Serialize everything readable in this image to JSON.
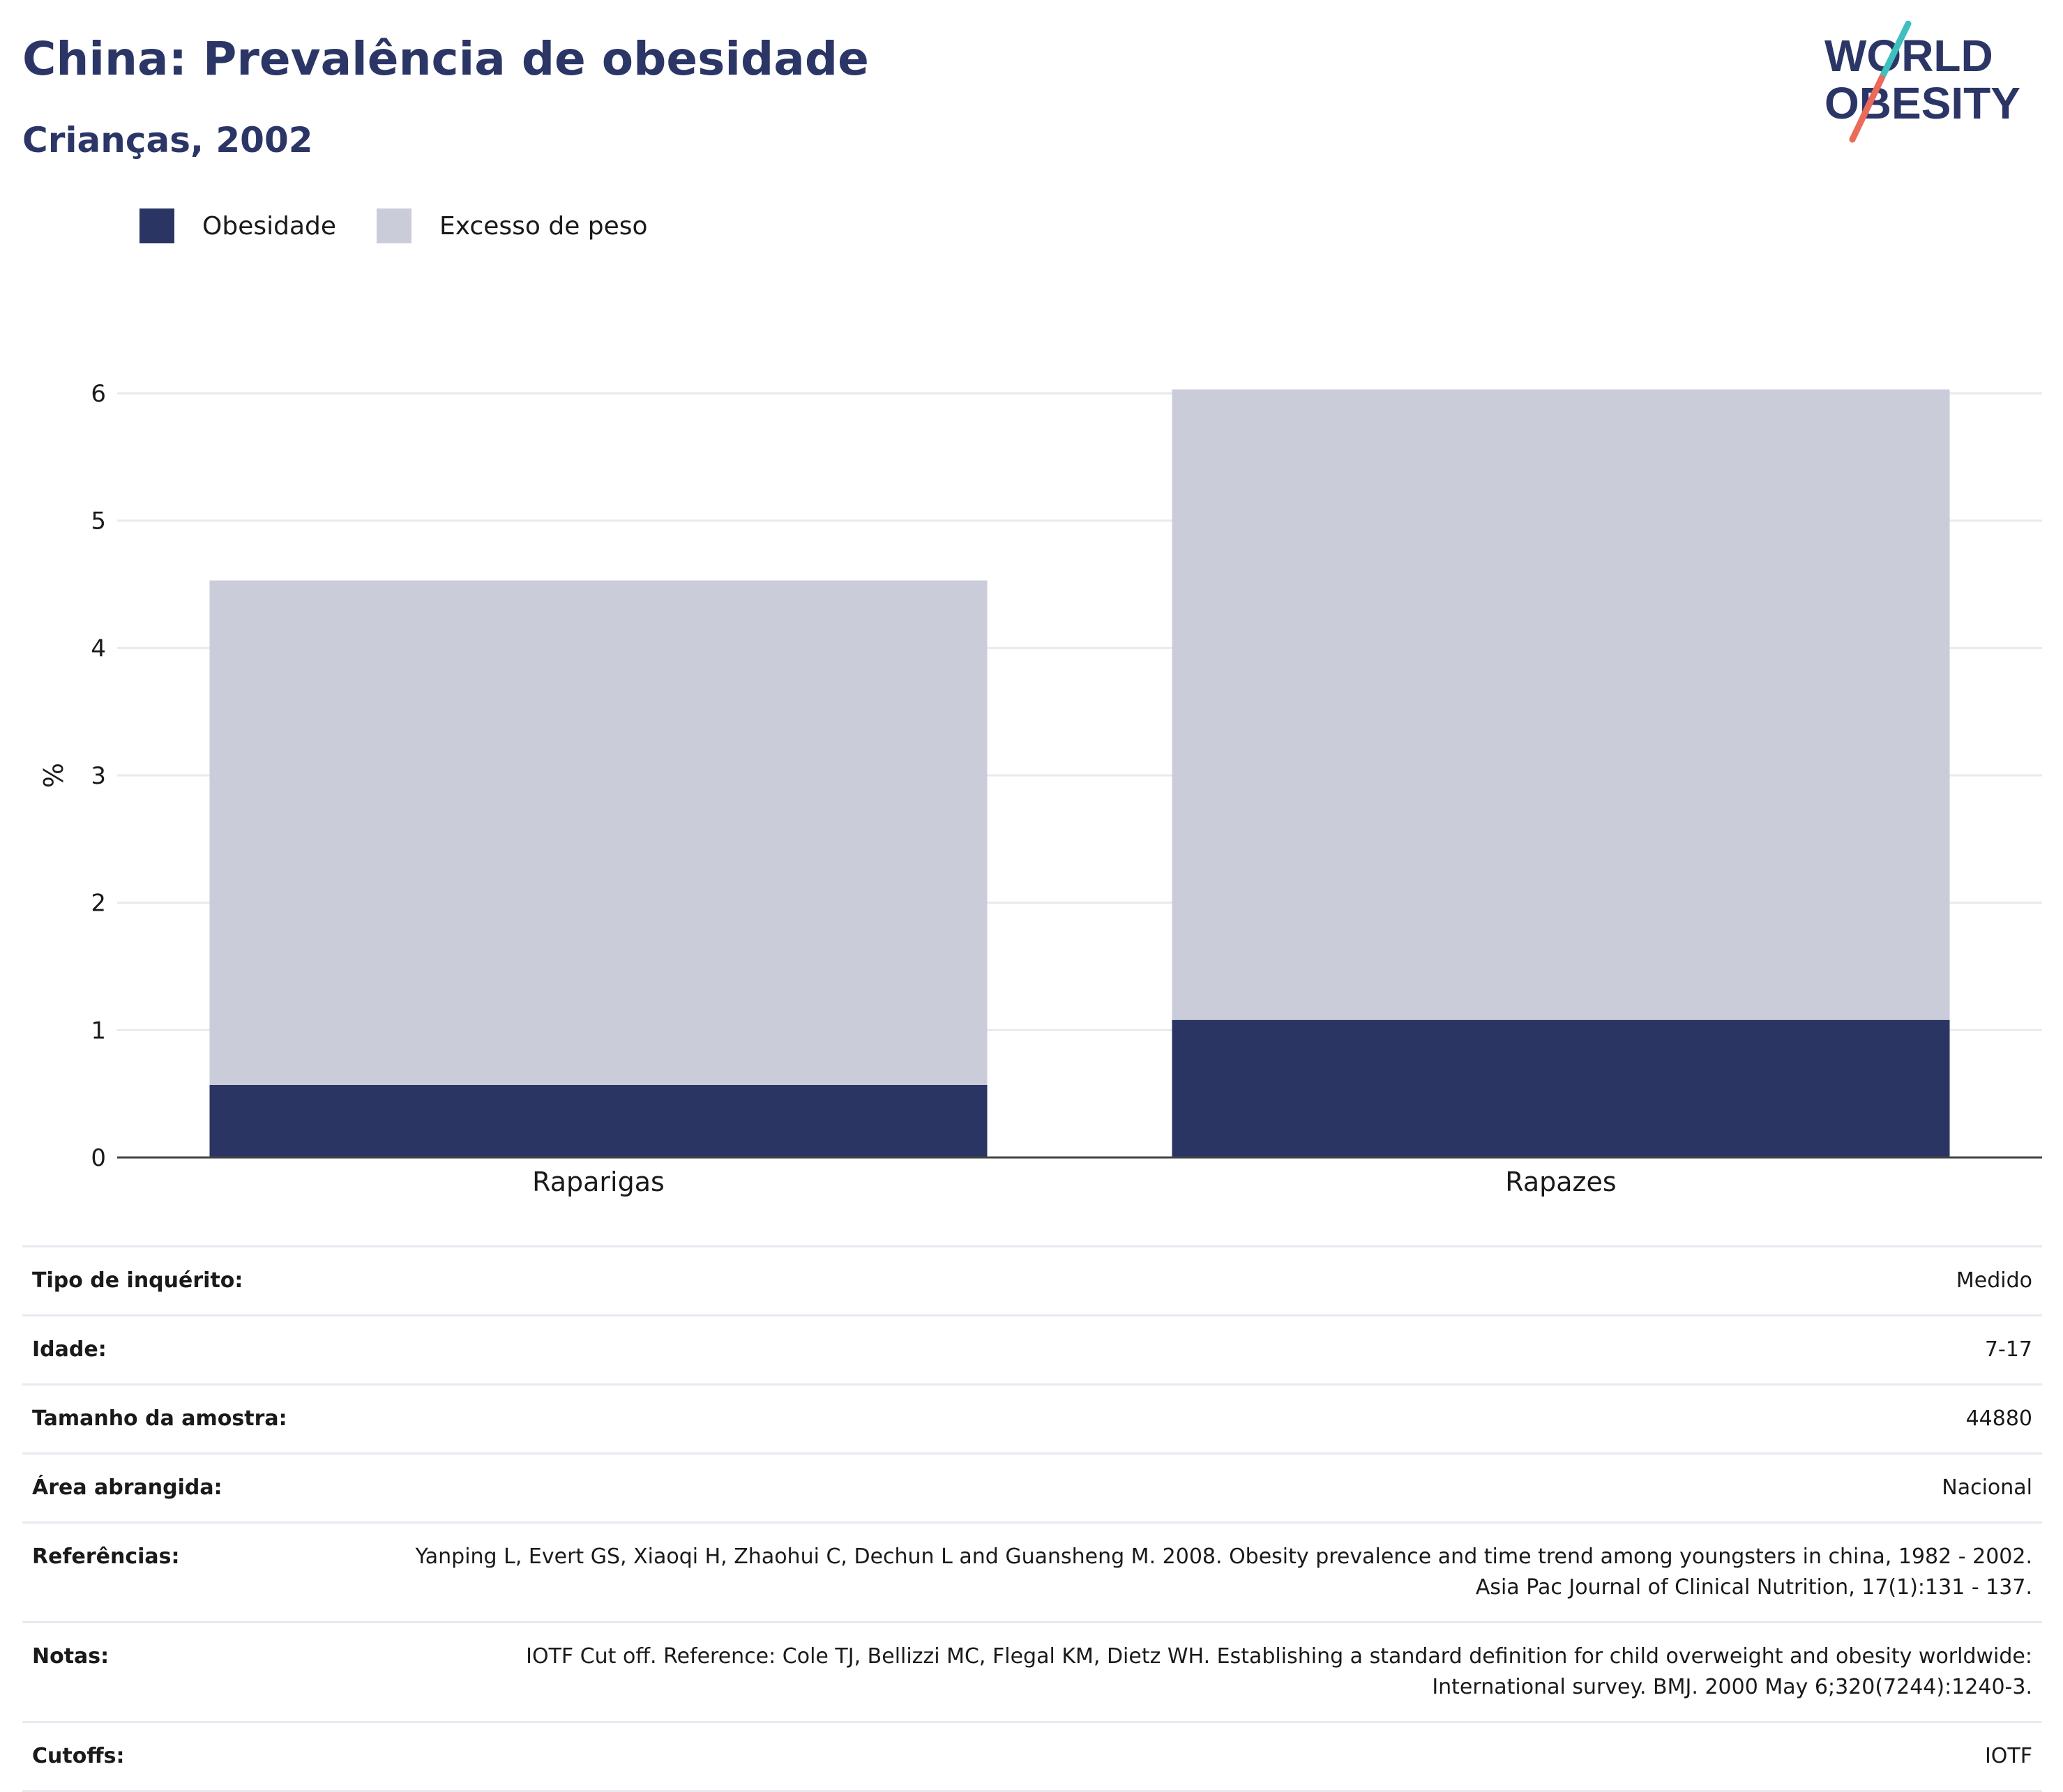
{
  "header": {
    "title": "China: Prevalência de obesidade",
    "subtitle": "Crianças, 2002",
    "logo_text_line1": "WORLD",
    "logo_text_line2": "OBESITY"
  },
  "colors": {
    "obesity": "#2a3564",
    "overweight": "#cacdd9",
    "title": "#2b3666",
    "gridline": "#e8eaf0",
    "axis": "#444444",
    "logo_teal": "#3fbfbf",
    "logo_coral": "#ec6a5c"
  },
  "legend": [
    {
      "label": "Obesidade",
      "color": "#2a3564"
    },
    {
      "label": "Excesso de peso",
      "color": "#cacdd9"
    }
  ],
  "chart_data": {
    "type": "bar",
    "stacked": true,
    "categories": [
      "Raparigas",
      "Rapazes"
    ],
    "series": [
      {
        "name": "Obesidade",
        "values": [
          0.57,
          1.08
        ]
      },
      {
        "name": "Excesso de peso",
        "values": [
          3.96,
          4.95
        ]
      }
    ],
    "totals": [
      4.53,
      6.03
    ],
    "ylabel": "%",
    "xlabel": "",
    "ylim": [
      0,
      6
    ],
    "yticks": [
      0,
      1,
      2,
      3,
      4,
      5,
      6
    ],
    "grid": true,
    "legend_position": "top-left"
  },
  "info": [
    {
      "key": "Tipo de inquérito:",
      "value": "Medido"
    },
    {
      "key": "Idade:",
      "value": "7-17"
    },
    {
      "key": "Tamanho da amostra:",
      "value": "44880"
    },
    {
      "key": "Área abrangida:",
      "value": "Nacional"
    },
    {
      "key": "Referências:",
      "value": "Yanping L, Evert GS, Xiaoqi H, Zhaohui C, Dechun L and Guansheng M. 2008. Obesity prevalence and time trend among youngsters in china, 1982 - 2002. Asia Pac Journal of Clinical Nutrition, 17(1):131 - 137."
    },
    {
      "key": "Notas:",
      "value": "IOTF Cut off. Reference: Cole TJ, Bellizzi MC, Flegal KM, Dietz WH. Establishing a standard definition for child overweight and obesity worldwide: International survey. BMJ. 2000 May 6;320(7244):1240-3."
    },
    {
      "key": "Cutoffs:",
      "value": "IOTF"
    }
  ]
}
